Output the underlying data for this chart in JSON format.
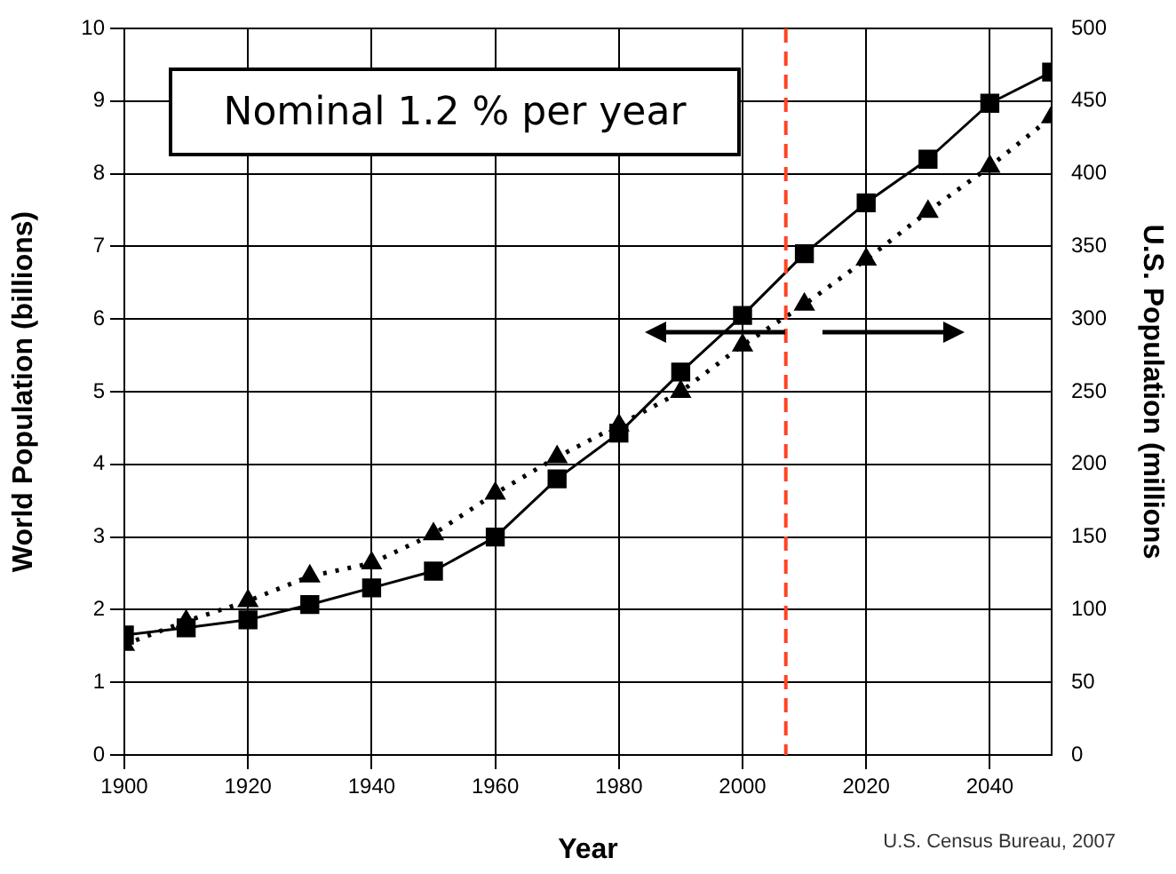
{
  "chart_data": {
    "type": "line",
    "xlabel": "Year",
    "ylabel": "World Population (billions)",
    "y2label": "U.S. Population (millions",
    "x": [
      1900,
      1910,
      1920,
      1930,
      1940,
      1950,
      1960,
      1970,
      1980,
      1990,
      2000,
      2010,
      2020,
      2030,
      2040,
      2050
    ],
    "series": [
      {
        "color": "#000000",
        "marker": "square",
        "line_style": "solid",
        "values": [
          1.65,
          1.75,
          1.86,
          2.07,
          2.3,
          2.53,
          3.0,
          3.8,
          4.43,
          5.27,
          6.05,
          6.9,
          7.6,
          8.2,
          8.97,
          9.4
        ]
      },
      {
        "color": "#000000",
        "marker": "triangle",
        "line_style": "dotted",
        "axis": "y2",
        "values": [
          76,
          92,
          106,
          123,
          132,
          152,
          180,
          205,
          227,
          250,
          282,
          310,
          341,
          374,
          405,
          439
        ]
      }
    ],
    "xlim": [
      1900,
      2050
    ],
    "xticks": [
      1900,
      1920,
      1940,
      1960,
      1980,
      2000,
      2020,
      2040
    ],
    "ylim": [
      0,
      10
    ],
    "yticks": [
      0,
      1,
      2,
      3,
      4,
      5,
      6,
      7,
      8,
      9,
      10
    ],
    "y2lim": [
      0,
      500
    ],
    "y2ticks": [
      0,
      50,
      100,
      150,
      200,
      250,
      300,
      350,
      400,
      450,
      500
    ],
    "grid": true,
    "ref_lines": [
      {
        "axis": "x",
        "value": 2007,
        "color": "#ff4422",
        "line_style": "dashed"
      }
    ],
    "annotations": [
      "Nominal 1.2 % per year",
      "U.S. Census Bureau, 2007"
    ]
  }
}
